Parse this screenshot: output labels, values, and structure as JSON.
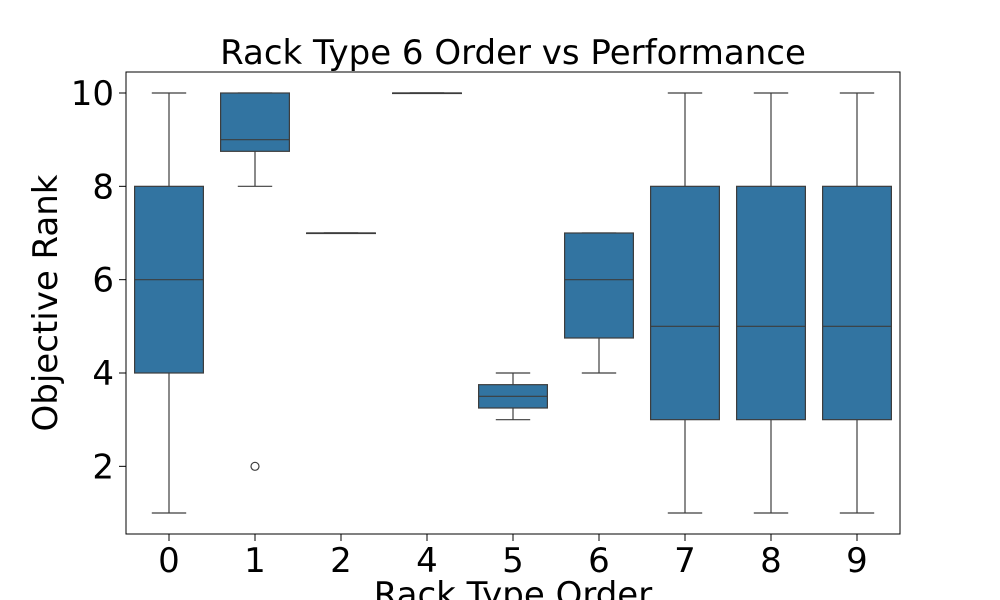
{
  "chart_data": {
    "type": "box",
    "title": "Rack Type 6 Order vs Performance",
    "xlabel": "Rack Type Order",
    "ylabel": "Objective Rank",
    "ylim": [
      0.55,
      10.45
    ],
    "yticks": [
      2,
      4,
      6,
      8,
      10
    ],
    "categories": [
      "0",
      "1",
      "2",
      "4",
      "5",
      "6",
      "7",
      "8",
      "9"
    ],
    "boxes": [
      {
        "category": "0",
        "whisker_low": 1,
        "q1": 4,
        "median": 6,
        "q3": 8,
        "whisker_high": 10,
        "outliers": []
      },
      {
        "category": "1",
        "whisker_low": 8,
        "q1": 8.75,
        "median": 9,
        "q3": 10,
        "whisker_high": 10,
        "outliers": [
          2
        ]
      },
      {
        "category": "2",
        "whisker_low": 7,
        "q1": 7,
        "median": 7,
        "q3": 7,
        "whisker_high": 7,
        "outliers": []
      },
      {
        "category": "4",
        "whisker_low": 10,
        "q1": 10,
        "median": 10,
        "q3": 10,
        "whisker_high": 10,
        "outliers": []
      },
      {
        "category": "5",
        "whisker_low": 3,
        "q1": 3.25,
        "median": 3.5,
        "q3": 3.75,
        "whisker_high": 4,
        "outliers": []
      },
      {
        "category": "6",
        "whisker_low": 4,
        "q1": 4.75,
        "median": 6,
        "q3": 7,
        "whisker_high": 7,
        "outliers": []
      },
      {
        "category": "7",
        "whisker_low": 1,
        "q1": 3,
        "median": 5,
        "q3": 8,
        "whisker_high": 10,
        "outliers": []
      },
      {
        "category": "8",
        "whisker_low": 1,
        "q1": 3,
        "median": 5,
        "q3": 8,
        "whisker_high": 10,
        "outliers": []
      },
      {
        "category": "9",
        "whisker_low": 1,
        "q1": 3,
        "median": 5,
        "q3": 8,
        "whisker_high": 10,
        "outliers": []
      }
    ],
    "box_color": "#3274a1",
    "line_color": "#3d3d3d",
    "grid": false,
    "legend": "none"
  }
}
